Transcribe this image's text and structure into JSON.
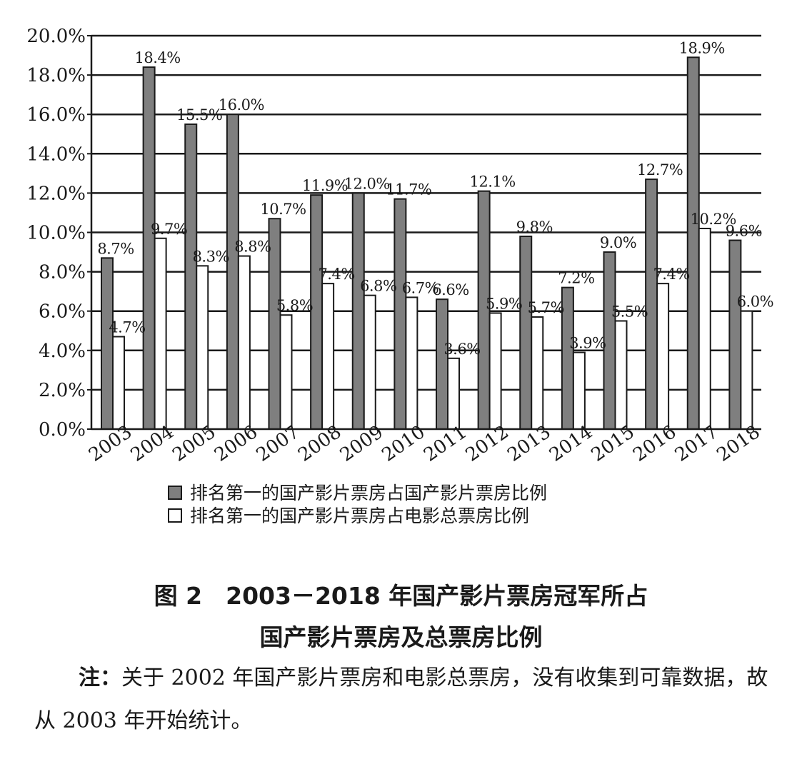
{
  "chart_data": {
    "type": "bar",
    "categories": [
      "2003",
      "2004",
      "2005",
      "2006",
      "2007",
      "2008",
      "2009",
      "2010",
      "2011",
      "2012",
      "2013",
      "2014",
      "2015",
      "2016",
      "2017",
      "2018"
    ],
    "series": [
      {
        "name": "排名第一的国产影片票房占国产影片票房比例",
        "values": [
          8.7,
          18.4,
          15.5,
          16.0,
          10.7,
          11.9,
          12.0,
          11.7,
          6.6,
          12.1,
          9.8,
          7.2,
          9.0,
          12.7,
          18.9,
          9.6
        ],
        "labels": [
          "8.7%",
          "18.4%",
          "15.5%",
          "16.0%",
          "10.7%",
          "11.9%",
          "12.0%",
          "11.7%",
          "6.6%",
          "12.1%",
          "9.8%",
          "7.2%",
          "9.0%",
          "12.7%",
          "18.9%",
          "9.6%"
        ],
        "color": "#7f7f7f"
      },
      {
        "name": "排名第一的国产影片票房占电影总票房比例",
        "values": [
          4.7,
          9.7,
          8.3,
          8.8,
          5.8,
          7.4,
          6.8,
          6.7,
          3.6,
          5.9,
          5.7,
          3.9,
          5.5,
          7.4,
          10.2,
          6.0
        ],
        "labels": [
          "4.7%",
          "9.7%",
          "8.3%",
          "8.8%",
          "5.8%",
          "7.4%",
          "6.8%",
          "6.7%",
          "3.6%",
          "5.9%",
          "5.7%",
          "3.9%",
          "5.5%",
          "7.4%",
          "10.2%",
          "6.0%"
        ],
        "color": "#ffffff"
      }
    ],
    "y_ticks": [
      "0.0%",
      "2.0%",
      "4.0%",
      "6.0%",
      "8.0%",
      "10.0%",
      "12.0%",
      "14.0%",
      "16.0%",
      "18.0%",
      "20.0%"
    ],
    "ylim": [
      0,
      20
    ],
    "grid": true,
    "legend_position": "bottom"
  },
  "caption": {
    "line1": "图 2　2003－2018 年国产影片票房冠军所占",
    "line2": "国产影片票房及总票房比例"
  },
  "note": {
    "label": "注：",
    "text": "关于 2002 年国产影片票房和电影总票房，没有收集到可靠数据，故从 2003 年开始统计。"
  }
}
